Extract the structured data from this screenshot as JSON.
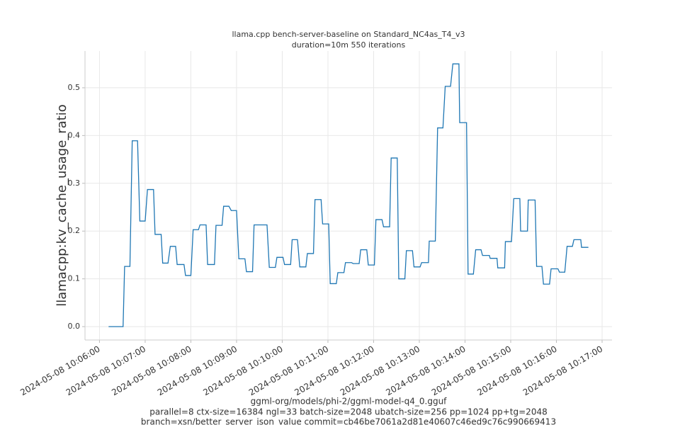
{
  "chart_data": {
    "type": "line",
    "title": "llama.cpp bench-server-baseline on Standard_NC4as_T4_v3",
    "subtitle": "duration=10m 550 iterations",
    "y_label": "llamacpp:kv_cache_usage_ratio",
    "x_label_lines": [
      "ggml-org/models/phi-2/ggml-model-q4_0.gguf",
      "parallel=8 ctx-size=16384 ngl=33 batch-size=2048 ubatch-size=256 pp=1024 pp+tg=2048",
      "branch=xsn/better_server_json_value commit=cb46be7061a2d81e40607c46ed9c76c990669413"
    ],
    "grid": true,
    "color": "#1f77b4",
    "xlim": [
      "2024-05-08 10:05:41",
      "2024-05-08 10:17:13"
    ],
    "xticks": [
      "2024-05-08 10:06:00",
      "2024-05-08 10:07:00",
      "2024-05-08 10:08:00",
      "2024-05-08 10:09:00",
      "2024-05-08 10:10:00",
      "2024-05-08 10:11:00",
      "2024-05-08 10:12:00",
      "2024-05-08 10:13:00",
      "2024-05-08 10:14:00",
      "2024-05-08 10:15:00",
      "2024-05-08 10:16:00",
      "2024-05-08 10:17:00"
    ],
    "ylim": [
      -0.028,
      0.577
    ],
    "yticks": [
      {
        "value": 0,
        "label": "0.0"
      },
      0.1,
      0.2,
      0.3,
      0.4,
      0.5
    ],
    "x": [
      "2024-05-08 10:06:12",
      "2024-05-08 10:06:31",
      "2024-05-08 10:06:33",
      "2024-05-08 10:06:40",
      "2024-05-08 10:06:43",
      "2024-05-08 10:06:50",
      "2024-05-08 10:06:53",
      "2024-05-08 10:07:00",
      "2024-05-08 10:07:03",
      "2024-05-08 10:07:11",
      "2024-05-08 10:07:13",
      "2024-05-08 10:07:21",
      "2024-05-08 10:07:23",
      "2024-05-08 10:07:30",
      "2024-05-08 10:07:33",
      "2024-05-08 10:07:40",
      "2024-05-08 10:07:42",
      "2024-05-08 10:07:51",
      "2024-05-08 10:07:53",
      "2024-05-08 10:08:00",
      "2024-05-08 10:08:03",
      "2024-05-08 10:08:10",
      "2024-05-08 10:08:12",
      "2024-05-08 10:08:20",
      "2024-05-08 10:08:22",
      "2024-05-08 10:08:31",
      "2024-05-08 10:08:33",
      "2024-05-08 10:08:41",
      "2024-05-08 10:08:43",
      "2024-05-08 10:08:50",
      "2024-05-08 10:08:53",
      "2024-05-08 10:09:00",
      "2024-05-08 10:09:03",
      "2024-05-08 10:09:11",
      "2024-05-08 10:09:13",
      "2024-05-08 10:09:21",
      "2024-05-08 10:09:23",
      "2024-05-08 10:09:40",
      "2024-05-08 10:09:43",
      "2024-05-08 10:09:51",
      "2024-05-08 10:09:53",
      "2024-05-08 10:10:01",
      "2024-05-08 10:10:03",
      "2024-05-08 10:10:11",
      "2024-05-08 10:10:13",
      "2024-05-08 10:10:20",
      "2024-05-08 10:10:23",
      "2024-05-08 10:10:31",
      "2024-05-08 10:10:33",
      "2024-05-08 10:10:41",
      "2024-05-08 10:10:43",
      "2024-05-08 10:10:51",
      "2024-05-08 10:10:53",
      "2024-05-08 10:11:01",
      "2024-05-08 10:11:03",
      "2024-05-08 10:11:11",
      "2024-05-08 10:11:13",
      "2024-05-08 10:11:21",
      "2024-05-08 10:11:23",
      "2024-05-08 10:11:31",
      "2024-05-08 10:11:33",
      "2024-05-08 10:11:41",
      "2024-05-08 10:11:43",
      "2024-05-08 10:11:51",
      "2024-05-08 10:11:53",
      "2024-05-08 10:12:01",
      "2024-05-08 10:12:03",
      "2024-05-08 10:12:11",
      "2024-05-08 10:12:13",
      "2024-05-08 10:12:21",
      "2024-05-08 10:12:23",
      "2024-05-08 10:12:31",
      "2024-05-08 10:12:33",
      "2024-05-08 10:12:41",
      "2024-05-08 10:12:43",
      "2024-05-08 10:12:51",
      "2024-05-08 10:12:53",
      "2024-05-08 10:13:01",
      "2024-05-08 10:13:03",
      "2024-05-08 10:13:12",
      "2024-05-08 10:13:13",
      "2024-05-08 10:13:21",
      "2024-05-08 10:13:24",
      "2024-05-08 10:13:31",
      "2024-05-08 10:13:34",
      "2024-05-08 10:13:41",
      "2024-05-08 10:13:44",
      "2024-05-08 10:13:52",
      "2024-05-08 10:13:53",
      "2024-05-08 10:14:02",
      "2024-05-08 10:14:04",
      "2024-05-08 10:14:11",
      "2024-05-08 10:14:14",
      "2024-05-08 10:14:21",
      "2024-05-08 10:14:23",
      "2024-05-08 10:14:32",
      "2024-05-08 10:14:33",
      "2024-05-08 10:14:42",
      "2024-05-08 10:14:43",
      "2024-05-08 10:14:52",
      "2024-05-08 10:14:53",
      "2024-05-08 10:15:01",
      "2024-05-08 10:15:04",
      "2024-05-08 10:15:12",
      "2024-05-08 10:15:13",
      "2024-05-08 10:15:22",
      "2024-05-08 10:15:23",
      "2024-05-08 10:15:32",
      "2024-05-08 10:15:34",
      "2024-05-08 10:15:41",
      "2024-05-08 10:15:43",
      "2024-05-08 10:15:51",
      "2024-05-08 10:15:53",
      "2024-05-08 10:16:02",
      "2024-05-08 10:16:04",
      "2024-05-08 10:16:11",
      "2024-05-08 10:16:14",
      "2024-05-08 10:16:21",
      "2024-05-08 10:16:23",
      "2024-05-08 10:16:32",
      "2024-05-08 10:16:33",
      "2024-05-08 10:16:42"
    ],
    "values": [
      0,
      0,
      0.126,
      0.126,
      0.389,
      0.389,
      0.221,
      0.221,
      0.287,
      0.287,
      0.193,
      0.193,
      0.133,
      0.133,
      0.168,
      0.168,
      0.13,
      0.13,
      0.107,
      0.107,
      0.203,
      0.203,
      0.213,
      0.213,
      0.13,
      0.13,
      0.212,
      0.212,
      0.252,
      0.252,
      0.243,
      0.243,
      0.142,
      0.142,
      0.115,
      0.115,
      0.213,
      0.213,
      0.124,
      0.124,
      0.145,
      0.145,
      0.13,
      0.13,
      0.182,
      0.182,
      0.125,
      0.125,
      0.153,
      0.153,
      0.266,
      0.266,
      0.215,
      0.215,
      0.09,
      0.09,
      0.113,
      0.113,
      0.134,
      0.134,
      0.132,
      0.132,
      0.161,
      0.161,
      0.129,
      0.129,
      0.224,
      0.224,
      0.209,
      0.209,
      0.353,
      0.353,
      0.1,
      0.1,
      0.159,
      0.159,
      0.125,
      0.125,
      0.134,
      0.134,
      0.179,
      0.179,
      0.416,
      0.416,
      0.503,
      0.503,
      0.55,
      0.55,
      0.427,
      0.427,
      0.11,
      0.11,
      0.161,
      0.161,
      0.149,
      0.149,
      0.143,
      0.143,
      0.123,
      0.123,
      0.178,
      0.178,
      0.268,
      0.268,
      0.2,
      0.2,
      0.265,
      0.265,
      0.126,
      0.126,
      0.089,
      0.089,
      0.121,
      0.121,
      0.114,
      0.114,
      0.168,
      0.168,
      0.182,
      0.182,
      0.166,
      0.166
    ]
  }
}
